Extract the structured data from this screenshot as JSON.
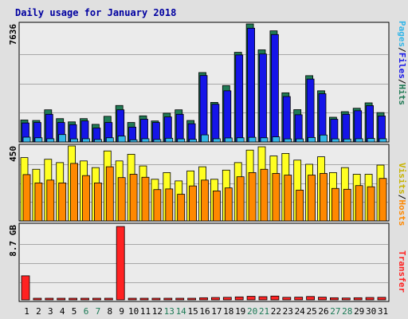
{
  "title": "Daily usage for January 2018",
  "colors": {
    "background": "#e0e0e0",
    "panel": "#ebebeb",
    "title": "#0000a0",
    "hits": "#207a55",
    "files": "#1515e8",
    "pages": "#33b6e8",
    "hosts": "#ff8800",
    "visits": "#ffff22",
    "transfer": "#ff2222",
    "weekday_label": "#000000",
    "weekend_label": "#1b7a55"
  },
  "side_labels": {
    "hits": "Hits",
    "files": "Files",
    "pages": "Pages",
    "visits": "Visits",
    "hosts": "Hosts",
    "transfer": "Transfer",
    "separator": "/"
  },
  "chart_data": [
    {
      "type": "bar",
      "name": "hits-files-pages",
      "max_label": "7636",
      "ylim": [
        0,
        7636
      ],
      "categories": [
        "1",
        "2",
        "3",
        "4",
        "5",
        "6",
        "7",
        "8",
        "9",
        "10",
        "11",
        "12",
        "13",
        "14",
        "15",
        "16",
        "17",
        "18",
        "19",
        "20",
        "21",
        "22",
        "23",
        "24",
        "25",
        "26",
        "27",
        "28",
        "29",
        "30",
        "31"
      ],
      "weekend_days": [
        "6",
        "7",
        "13",
        "14",
        "20",
        "21",
        "27",
        "28"
      ],
      "series": [
        {
          "name": "Hits",
          "values": [
            1420,
            1390,
            2080,
            1510,
            1300,
            1510,
            1140,
            1660,
            2360,
            1260,
            1690,
            1360,
            1860,
            2080,
            1390,
            4490,
            2560,
            3650,
            5800,
            7636,
            5960,
            7190,
            3180,
            2090,
            4290,
            3310,
            1600,
            1960,
            2180,
            2530,
            1900
          ]
        },
        {
          "name": "Files",
          "values": [
            1230,
            1260,
            1790,
            1260,
            1120,
            1360,
            900,
            1260,
            2080,
            960,
            1470,
            1260,
            1620,
            1790,
            1180,
            4300,
            2440,
            3310,
            5630,
            7360,
            5690,
            6950,
            2940,
            1760,
            4070,
            3120,
            1470,
            1790,
            2020,
            2350,
            1680
          ]
        },
        {
          "name": "Pages",
          "values": [
            310,
            270,
            210,
            480,
            200,
            210,
            160,
            270,
            380,
            140,
            210,
            160,
            240,
            200,
            170,
            460,
            210,
            260,
            270,
            300,
            270,
            330,
            200,
            200,
            290,
            450,
            200,
            190,
            210,
            230,
            210
          ]
        }
      ]
    },
    {
      "type": "bar",
      "name": "visits-hosts",
      "max_label": "450",
      "ylim": [
        0,
        450
      ],
      "series": [
        {
          "name": "Visits",
          "values": [
            380,
            310,
            370,
            350,
            450,
            360,
            320,
            420,
            360,
            400,
            330,
            250,
            290,
            240,
            300,
            325,
            250,
            305,
            350,
            425,
            445,
            390,
            405,
            365,
            340,
            385,
            290,
            320,
            280,
            280,
            335
          ]
        },
        {
          "name": "Hosts",
          "values": [
            278,
            228,
            245,
            228,
            345,
            272,
            228,
            325,
            260,
            280,
            262,
            188,
            192,
            160,
            210,
            245,
            180,
            198,
            265,
            290,
            310,
            285,
            275,
            185,
            275,
            285,
            195,
            190,
            212,
            205,
            255
          ]
        }
      ]
    },
    {
      "type": "bar",
      "name": "transfer",
      "max_label": "8.7 GB",
      "ylim": [
        0,
        8.7
      ],
      "series": [
        {
          "name": "Transfer",
          "values": [
            2.85,
            0.12,
            0.12,
            0.12,
            0.12,
            0.12,
            0.12,
            0.12,
            8.7,
            0.12,
            0.12,
            0.12,
            0.12,
            0.12,
            0.12,
            0.25,
            0.28,
            0.3,
            0.35,
            0.42,
            0.38,
            0.45,
            0.3,
            0.32,
            0.4,
            0.32,
            0.25,
            0.22,
            0.25,
            0.28,
            0.3
          ]
        }
      ]
    }
  ]
}
